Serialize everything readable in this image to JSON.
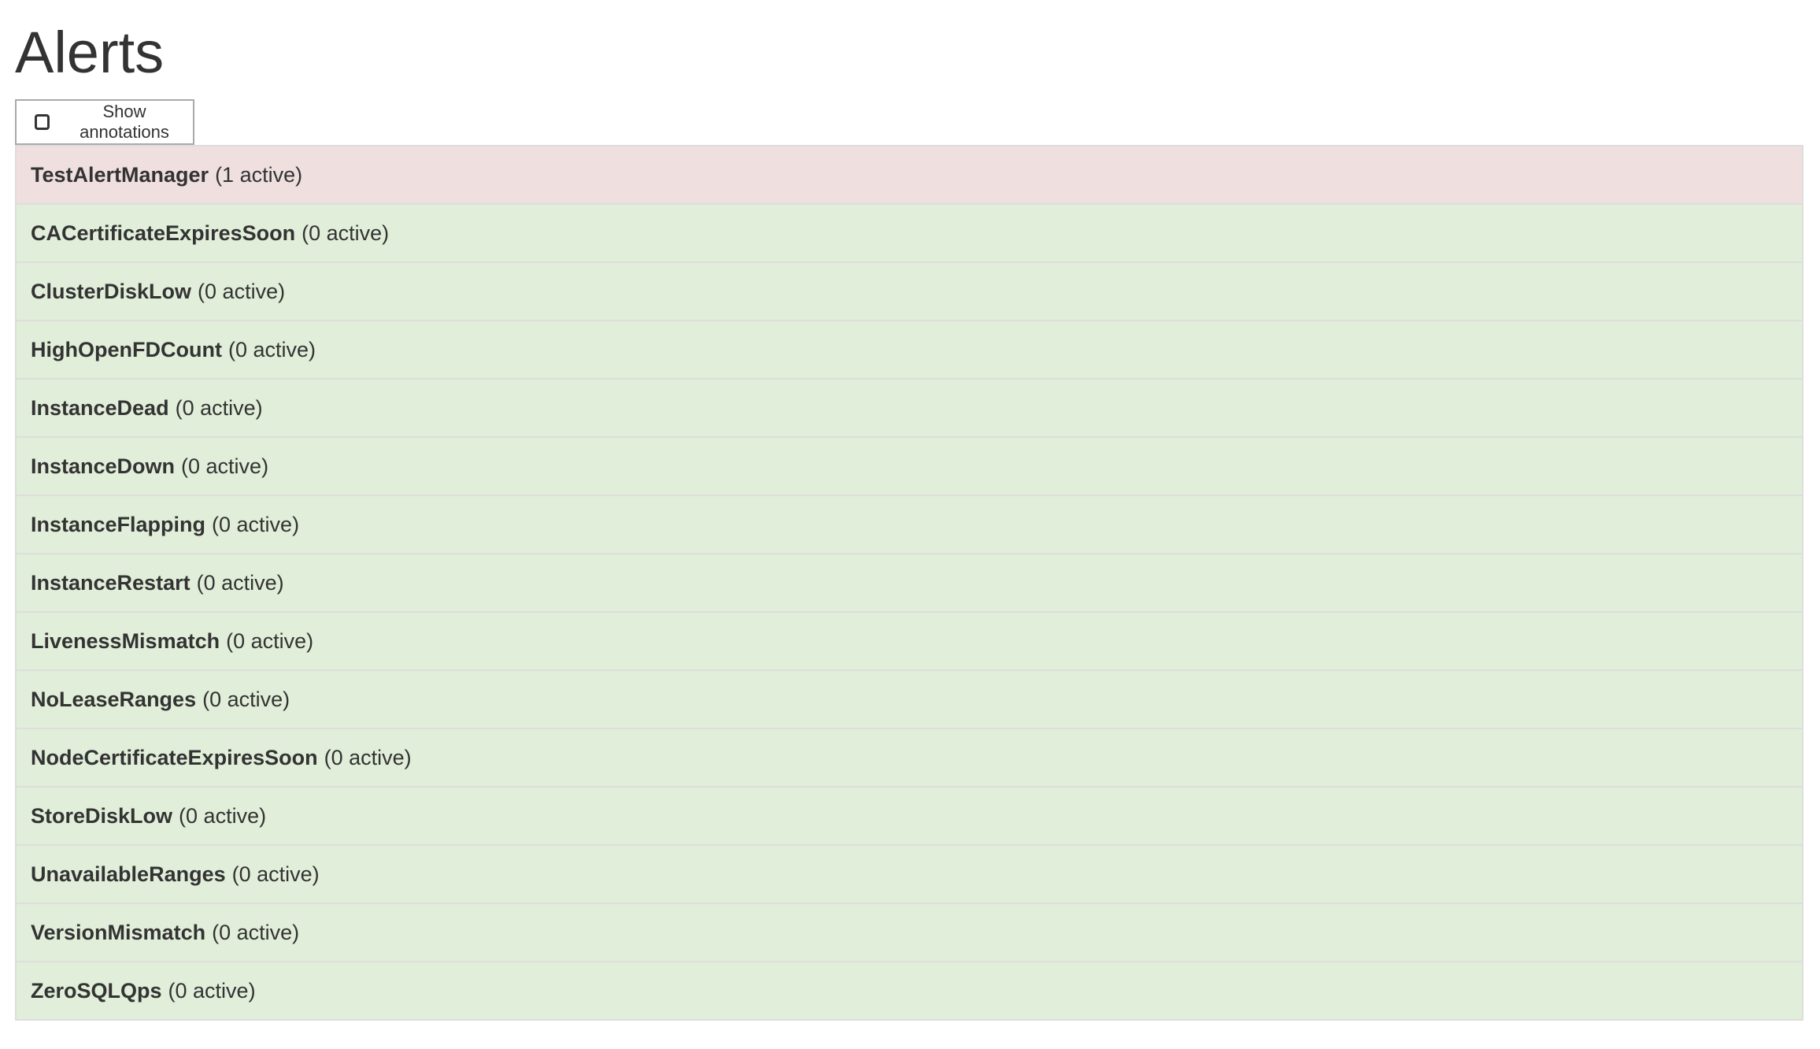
{
  "page": {
    "title": "Alerts"
  },
  "toolbar": {
    "show_annotations_label": "Show annotations",
    "show_annotations_checked": false
  },
  "colors": {
    "firing": "#efdfdf",
    "inactive": "#e1eed9",
    "border": "#dddddd",
    "text": "#333333"
  },
  "alerts": [
    {
      "name": "TestAlertManager",
      "status": "(1 active)",
      "state": "firing"
    },
    {
      "name": "CACertificateExpiresSoon",
      "status": "(0 active)",
      "state": "inactive"
    },
    {
      "name": "ClusterDiskLow",
      "status": "(0 active)",
      "state": "inactive"
    },
    {
      "name": "HighOpenFDCount",
      "status": "(0 active)",
      "state": "inactive"
    },
    {
      "name": "InstanceDead",
      "status": "(0 active)",
      "state": "inactive"
    },
    {
      "name": "InstanceDown",
      "status": "(0 active)",
      "state": "inactive"
    },
    {
      "name": "InstanceFlapping",
      "status": "(0 active)",
      "state": "inactive"
    },
    {
      "name": "InstanceRestart",
      "status": "(0 active)",
      "state": "inactive"
    },
    {
      "name": "LivenessMismatch",
      "status": "(0 active)",
      "state": "inactive"
    },
    {
      "name": "NoLeaseRanges",
      "status": "(0 active)",
      "state": "inactive"
    },
    {
      "name": "NodeCertificateExpiresSoon",
      "status": "(0 active)",
      "state": "inactive"
    },
    {
      "name": "StoreDiskLow",
      "status": "(0 active)",
      "state": "inactive"
    },
    {
      "name": "UnavailableRanges",
      "status": "(0 active)",
      "state": "inactive"
    },
    {
      "name": "VersionMismatch",
      "status": "(0 active)",
      "state": "inactive"
    },
    {
      "name": "ZeroSQLQps",
      "status": "(0 active)",
      "state": "inactive"
    }
  ]
}
